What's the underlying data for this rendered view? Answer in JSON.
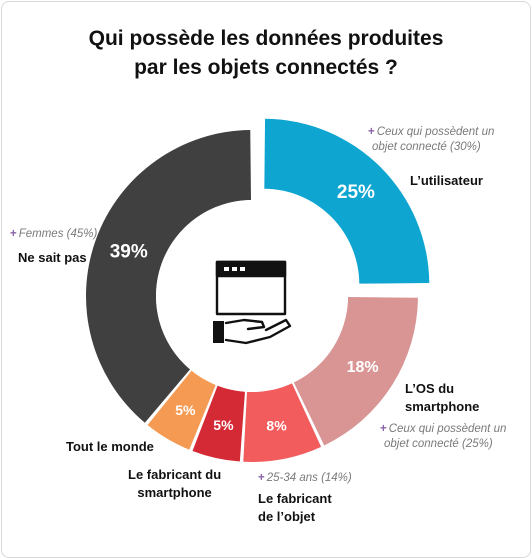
{
  "title": {
    "line1": "Qui possède les données produites",
    "line2": "par les objets connectés ?"
  },
  "chart_data": {
    "type": "pie",
    "categories": [
      "L’utilisateur",
      "L’OS du smartphone",
      "Le fabricant de l’objet",
      "Le fabricant du smartphone",
      "Tout le monde",
      "Ne sait pas"
    ],
    "values": [
      25,
      18,
      8,
      5,
      5,
      39
    ],
    "value_labels": [
      "25%",
      "18%",
      "8%",
      "5%",
      "5%",
      "39%"
    ],
    "colors": [
      "#0fa5d1",
      "#d99494",
      "#f25c5c",
      "#d42a35",
      "#f59a52",
      "#404040"
    ],
    "exploded": "L’utilisateur",
    "donut": true,
    "center_icon": "data-ownership-hand-window-icon"
  },
  "labels": {
    "utilisateur": "L’utilisateur",
    "os_line1": "L’OS du",
    "os_line2": "smartphone",
    "fab_objet_line1": "Le fabricant",
    "fab_objet_line2": "de l’objet",
    "fab_smart_line1": "Le fabricant du",
    "fab_smart_line2": "smartphone",
    "tout_le_monde": "Tout le monde",
    "ne_sait_pas": "Ne sait pas"
  },
  "notes": {
    "utilisateur_line1": "Ceux qui possèdent un",
    "utilisateur_line2": "objet connecté (30%)",
    "os_line1": "Ceux qui possèdent un",
    "os_line2": "objet connecté (25%)",
    "fab_objet": "25-34 ans (14%)",
    "ne_sait_pas": "Femmes (45%)",
    "plus_symbol": "+"
  }
}
